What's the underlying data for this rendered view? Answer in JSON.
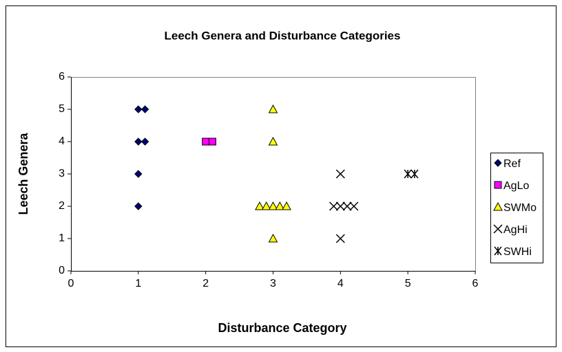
{
  "chart_data": {
    "type": "scatter",
    "title": "Leech Genera and Disturbance Categories",
    "x_label": "Disturbance Category",
    "y_label": "Leech Genera",
    "xlim": [
      0,
      6
    ],
    "xticks": [
      0,
      1,
      2,
      3,
      4,
      5,
      6
    ],
    "ylim": [
      0,
      6
    ],
    "yticks": [
      0,
      1,
      2,
      3,
      4,
      5,
      6
    ],
    "grid": false,
    "legend": "right",
    "series": [
      {
        "name": "Ref",
        "color": "#000080",
        "marker": "diamond",
        "x": [
          1,
          1,
          1,
          1.1,
          1,
          1.1
        ],
        "values": [
          2,
          3,
          4,
          4,
          5,
          5
        ]
      },
      {
        "name": "AgLo",
        "color": "#ff00ff",
        "marker": "square",
        "x": [
          2,
          2.1
        ],
        "values": [
          4,
          4
        ]
      },
      {
        "name": "SWMo",
        "color": "#ffff00",
        "marker": "triangle",
        "x": [
          3,
          3,
          3,
          2.8,
          2.9,
          3,
          3.1,
          3.2
        ],
        "values": [
          5,
          4,
          1,
          2,
          2,
          2,
          2,
          2
        ]
      },
      {
        "name": "AgHi",
        "color": "#000000",
        "marker": "x",
        "x": [
          4,
          4,
          3.9,
          4,
          4.1,
          4.2
        ],
        "values": [
          3,
          1,
          2,
          2,
          2,
          2
        ]
      },
      {
        "name": "SWHi",
        "color": "#000000",
        "marker": "star",
        "x": [
          5,
          5.1
        ],
        "values": [
          3,
          3
        ]
      }
    ]
  }
}
